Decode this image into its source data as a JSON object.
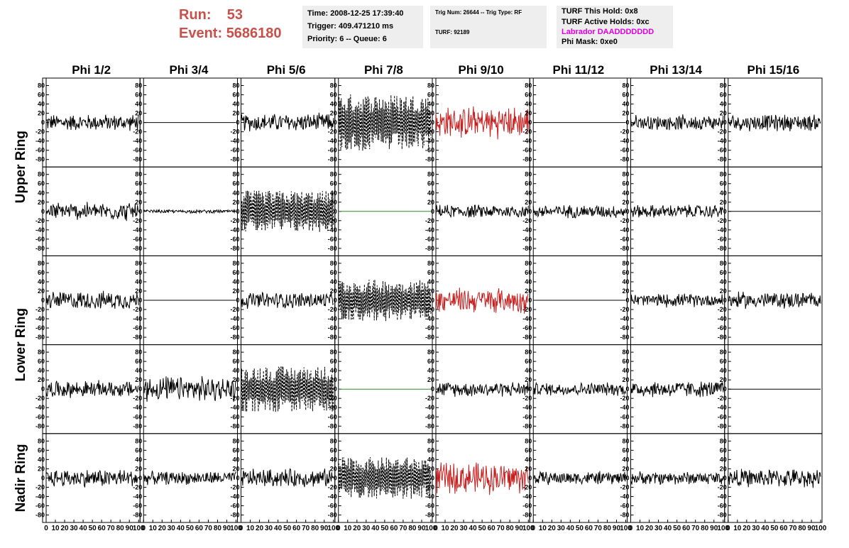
{
  "header": {
    "run_label": "Run:",
    "run_value": "53",
    "event_label": "Event:",
    "event_value": "5686180",
    "time": "Time: 2008-12-25 17:39:40",
    "trigger": "Trigger: 409.471210 ms",
    "priority": "Priority: 6 -- Queue: 6",
    "trig_num": "Trig Num: 26644 -- Trig Type: RF",
    "turf": "TURF: 92189",
    "turf_hold": "TURF This Hold: 0x8",
    "turf_active": "TURF Active Holds: 0xc",
    "labrador": "Labrador DAADDDDDDD",
    "phi_mask": "Phi Mask: 0xe0"
  },
  "colors": {
    "run_text": "#c9504a",
    "panel_bg": "#eeeeee",
    "labrador_text": "#e200e2",
    "trace_black": "#000000",
    "trace_red": "#c81e1e",
    "flat_green": "#2c8a2c"
  },
  "chart_data": {
    "type": "line",
    "columns": [
      "Phi 1/2",
      "Phi 3/4",
      "Phi 5/6",
      "Phi 7/8",
      "Phi 9/10",
      "Phi 11/12",
      "Phi 13/14",
      "Phi 15/16"
    ],
    "row_groups": [
      "Upper Ring",
      "Lower Ring",
      "Nadir Ring"
    ],
    "ylim": [
      -90,
      90
    ],
    "yticks": [
      -80,
      -60,
      -40,
      -20,
      0,
      20,
      40,
      60,
      80
    ],
    "xlim": [
      0,
      100
    ],
    "xticks": [
      0,
      10,
      20,
      30,
      40,
      50,
      60,
      70,
      80,
      90,
      100
    ],
    "grid": false,
    "panels": [
      [
        {
          "style": "noise",
          "amplitude": 20,
          "color": "black"
        },
        {
          "style": "flat",
          "amplitude": 0,
          "color": "black"
        },
        {
          "style": "noise",
          "amplitude": 22,
          "color": "black"
        },
        {
          "style": "dashed",
          "amplitude": 62,
          "color": "black"
        },
        {
          "style": "noise",
          "amplitude": 38,
          "color": "red"
        },
        {
          "style": "flat",
          "amplitude": 0,
          "color": "black"
        },
        {
          "style": "noise",
          "amplitude": 18,
          "color": "black"
        },
        {
          "style": "noise",
          "amplitude": 20,
          "color": "black"
        }
      ],
      [
        {
          "style": "noise",
          "amplitude": 22,
          "color": "black"
        },
        {
          "style": "noise",
          "amplitude": 4,
          "color": "black"
        },
        {
          "style": "dashed",
          "amplitude": 45,
          "color": "black"
        },
        {
          "style": "flat",
          "amplitude": 0,
          "color": "green"
        },
        {
          "style": "noise",
          "amplitude": 16,
          "color": "black"
        },
        {
          "style": "noise",
          "amplitude": 16,
          "color": "black"
        },
        {
          "style": "noise",
          "amplitude": 16,
          "color": "black"
        },
        {
          "style": "flat",
          "amplitude": 0,
          "color": "black"
        }
      ],
      [
        {
          "style": "noise",
          "amplitude": 22,
          "color": "black"
        },
        {
          "style": "flat",
          "amplitude": 0,
          "color": "black"
        },
        {
          "style": "noise",
          "amplitude": 20,
          "color": "black"
        },
        {
          "style": "dashed",
          "amplitude": 45,
          "color": "black"
        },
        {
          "style": "noise",
          "amplitude": 30,
          "color": "red"
        },
        {
          "style": "flat",
          "amplitude": 0,
          "color": "black"
        },
        {
          "style": "noise",
          "amplitude": 16,
          "color": "black"
        },
        {
          "style": "noise",
          "amplitude": 20,
          "color": "black"
        }
      ],
      [
        {
          "style": "noise",
          "amplitude": 20,
          "color": "black"
        },
        {
          "style": "noise",
          "amplitude": 30,
          "color": "black"
        },
        {
          "style": "dashed",
          "amplitude": 50,
          "color": "black"
        },
        {
          "style": "flat",
          "amplitude": 0,
          "color": "green"
        },
        {
          "style": "noise",
          "amplitude": 18,
          "color": "black"
        },
        {
          "style": "noise",
          "amplitude": 16,
          "color": "black"
        },
        {
          "style": "noise",
          "amplitude": 20,
          "color": "black"
        },
        {
          "style": "flat",
          "amplitude": 0,
          "color": "black"
        }
      ],
      [
        {
          "style": "noise",
          "amplitude": 22,
          "color": "black"
        },
        {
          "style": "noise",
          "amplitude": 16,
          "color": "black"
        },
        {
          "style": "noise",
          "amplitude": 22,
          "color": "black"
        },
        {
          "style": "dashed",
          "amplitude": 45,
          "color": "black"
        },
        {
          "style": "noise",
          "amplitude": 38,
          "color": "red"
        },
        {
          "style": "noise",
          "amplitude": 16,
          "color": "black"
        },
        {
          "style": "noise",
          "amplitude": 16,
          "color": "black"
        },
        {
          "style": "noise",
          "amplitude": 22,
          "color": "black"
        }
      ]
    ]
  }
}
